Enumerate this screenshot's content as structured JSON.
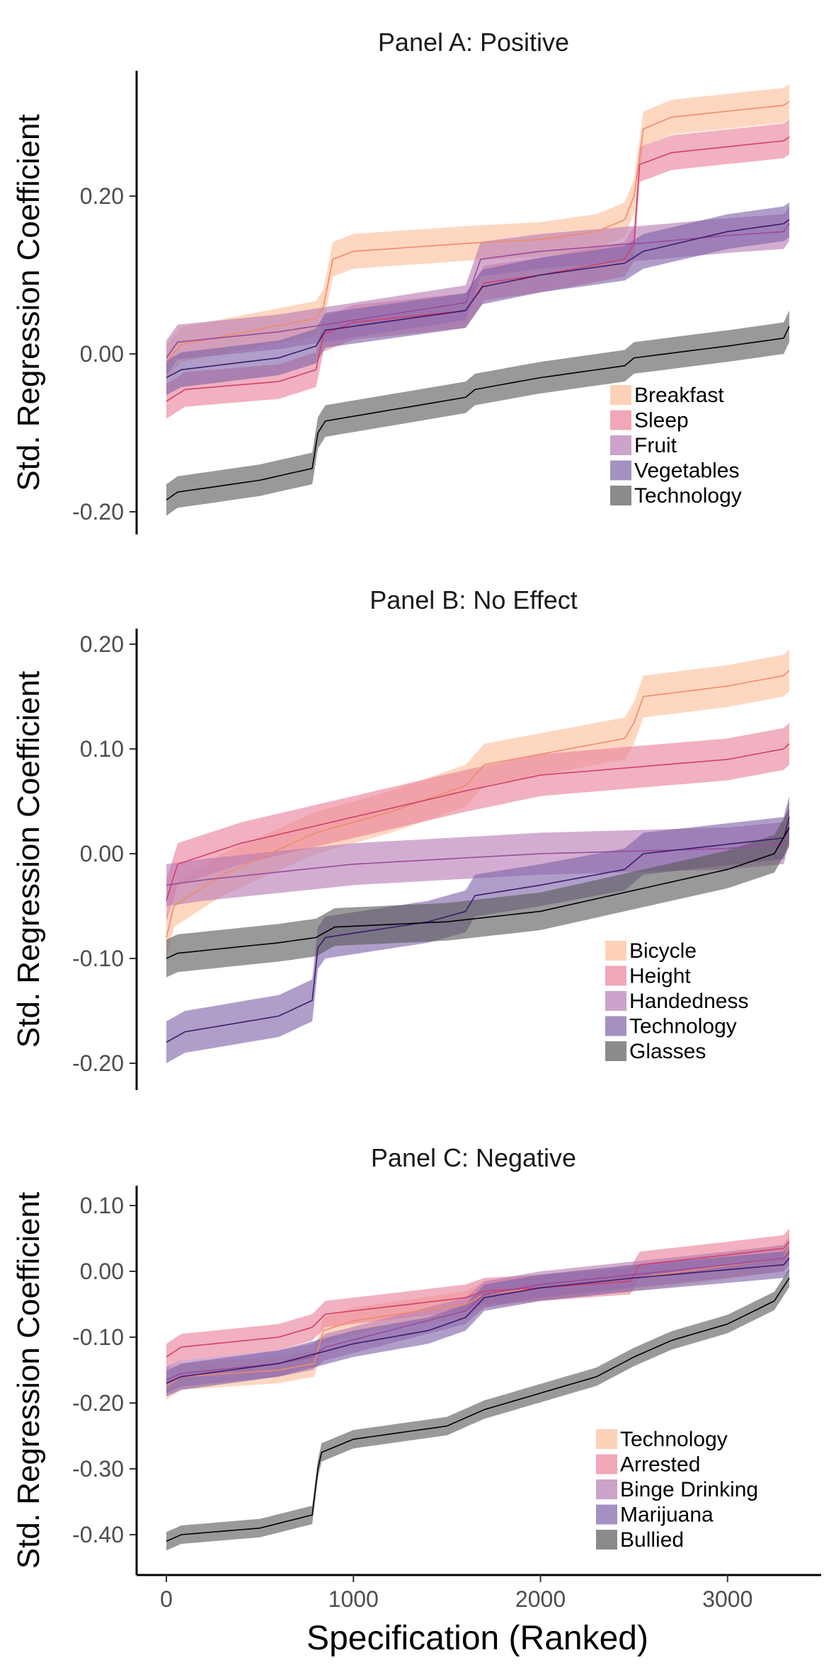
{
  "chart_data": {
    "type": "line",
    "x_label": "Specification (Ranked)",
    "xlim": [
      0,
      3330
    ],
    "x_ticks": [
      0,
      1000,
      2000,
      3000
    ],
    "x_tick_labels": [
      "0",
      "1000",
      "2000",
      "3000"
    ],
    "colors": {
      "c1": "#fdbe9b",
      "c2": "#e9819a",
      "c3": "#b87ab5",
      "c4": "#7e62a8",
      "c5": "#5a5a5a",
      "line1": "#f08a6a",
      "line2": "#d43f6a",
      "line3": "#9b4a9c",
      "line4": "#3d1a6e",
      "line5": "#000000"
    },
    "panels": [
      {
        "title": "Panel A: Positive",
        "y_label": "Std. Regression Coefficient",
        "ylim": [
          -0.225,
          0.36
        ],
        "y_ticks": [
          0.2,
          0.0,
          -0.2
        ],
        "y_tick_labels": [
          "0.20",
          "0.00",
          "-0.20"
        ],
        "legend_position": "bottom-right",
        "series": [
          {
            "name": "Breakfast",
            "band": 0.022,
            "points": [
              [
                0,
                -0.01
              ],
              [
                80,
                0.012
              ],
              [
                800,
                0.045
              ],
              [
                840,
                0.06
              ],
              [
                890,
                0.12
              ],
              [
                1000,
                0.13
              ],
              [
                1600,
                0.14
              ],
              [
                2000,
                0.145
              ],
              [
                2300,
                0.155
              ],
              [
                2450,
                0.17
              ],
              [
                2500,
                0.2
              ],
              [
                2550,
                0.285
              ],
              [
                2700,
                0.3
              ],
              [
                3300,
                0.315
              ],
              [
                3330,
                0.32
              ]
            ]
          },
          {
            "name": "Sleep",
            "band": 0.022,
            "points": [
              [
                0,
                -0.06
              ],
              [
                100,
                -0.045
              ],
              [
                600,
                -0.035
              ],
              [
                800,
                -0.02
              ],
              [
                840,
                0.025
              ],
              [
                1000,
                0.04
              ],
              [
                1600,
                0.055
              ],
              [
                1700,
                0.09
              ],
              [
                2000,
                0.1
              ],
              [
                2450,
                0.12
              ],
              [
                2500,
                0.14
              ],
              [
                2530,
                0.24
              ],
              [
                2700,
                0.255
              ],
              [
                3300,
                0.27
              ],
              [
                3330,
                0.275
              ]
            ]
          },
          {
            "name": "Fruit",
            "band": 0.022,
            "points": [
              [
                0,
                -0.005
              ],
              [
                60,
                0.015
              ],
              [
                600,
                0.028
              ],
              [
                1600,
                0.065
              ],
              [
                1680,
                0.12
              ],
              [
                2000,
                0.13
              ],
              [
                2500,
                0.14
              ],
              [
                2530,
                0.14
              ],
              [
                3000,
                0.15
              ],
              [
                3300,
                0.155
              ],
              [
                3330,
                0.165
              ]
            ]
          },
          {
            "name": "Vegetables",
            "band": 0.022,
            "points": [
              [
                0,
                -0.03
              ],
              [
                80,
                -0.02
              ],
              [
                600,
                -0.005
              ],
              [
                800,
                0.01
              ],
              [
                850,
                0.03
              ],
              [
                1600,
                0.055
              ],
              [
                1690,
                0.085
              ],
              [
                2000,
                0.1
              ],
              [
                2450,
                0.115
              ],
              [
                2550,
                0.13
              ],
              [
                3000,
                0.155
              ],
              [
                3300,
                0.165
              ],
              [
                3330,
                0.17
              ]
            ]
          },
          {
            "name": "Technology",
            "band": 0.02,
            "points": [
              [
                0,
                -0.185
              ],
              [
                60,
                -0.175
              ],
              [
                500,
                -0.16
              ],
              [
                780,
                -0.145
              ],
              [
                810,
                -0.1
              ],
              [
                850,
                -0.085
              ],
              [
                1600,
                -0.055
              ],
              [
                1650,
                -0.045
              ],
              [
                2000,
                -0.03
              ],
              [
                2450,
                -0.015
              ],
              [
                2500,
                -0.005
              ],
              [
                3000,
                0.01
              ],
              [
                3300,
                0.02
              ],
              [
                3330,
                0.035
              ]
            ]
          }
        ]
      },
      {
        "title": "Panel B: No Effect",
        "y_label": "Std. Regression Coefficient",
        "ylim": [
          -0.22,
          0.21
        ],
        "y_ticks": [
          0.2,
          0.1,
          0.0,
          -0.1,
          -0.2
        ],
        "y_tick_labels": [
          "0.20",
          "0.10",
          "0.00",
          "-0.10",
          "-0.20"
        ],
        "legend_position": "bottom-right",
        "series": [
          {
            "name": "Bicycle",
            "band": 0.02,
            "points": [
              [
                0,
                -0.08
              ],
              [
                40,
                -0.05
              ],
              [
                300,
                -0.02
              ],
              [
                800,
                0.02
              ],
              [
                1200,
                0.04
              ],
              [
                1600,
                0.065
              ],
              [
                1700,
                0.085
              ],
              [
                2000,
                0.095
              ],
              [
                2450,
                0.11
              ],
              [
                2500,
                0.125
              ],
              [
                2550,
                0.15
              ],
              [
                3000,
                0.16
              ],
              [
                3300,
                0.17
              ],
              [
                3330,
                0.175
              ]
            ]
          },
          {
            "name": "Height",
            "band": 0.02,
            "points": [
              [
                0,
                -0.045
              ],
              [
                60,
                -0.01
              ],
              [
                400,
                0.01
              ],
              [
                1000,
                0.035
              ],
              [
                1600,
                0.06
              ],
              [
                2000,
                0.075
              ],
              [
                3000,
                0.09
              ],
              [
                3300,
                0.1
              ],
              [
                3330,
                0.105
              ]
            ]
          },
          {
            "name": "Handedness",
            "band": 0.02,
            "points": [
              [
                0,
                -0.03
              ],
              [
                200,
                -0.025
              ],
              [
                1000,
                -0.01
              ],
              [
                2000,
                0.0
              ],
              [
                3000,
                0.005
              ],
              [
                3300,
                0.01
              ],
              [
                3330,
                0.03
              ]
            ]
          },
          {
            "name": "Technology",
            "band": 0.02,
            "points": [
              [
                0,
                -0.18
              ],
              [
                100,
                -0.17
              ],
              [
                600,
                -0.155
              ],
              [
                780,
                -0.14
              ],
              [
                810,
                -0.09
              ],
              [
                850,
                -0.08
              ],
              [
                1400,
                -0.065
              ],
              [
                1600,
                -0.055
              ],
              [
                1650,
                -0.04
              ],
              [
                2000,
                -0.03
              ],
              [
                2450,
                -0.015
              ],
              [
                2550,
                0.0
              ],
              [
                3300,
                0.015
              ],
              [
                3330,
                0.035
              ]
            ]
          },
          {
            "name": "Glasses",
            "band": 0.018,
            "points": [
              [
                0,
                -0.1
              ],
              [
                60,
                -0.095
              ],
              [
                600,
                -0.085
              ],
              [
                800,
                -0.08
              ],
              [
                900,
                -0.07
              ],
              [
                1500,
                -0.065
              ],
              [
                2000,
                -0.055
              ],
              [
                2500,
                -0.035
              ],
              [
                3000,
                -0.015
              ],
              [
                3250,
                0.0
              ],
              [
                3330,
                0.025
              ]
            ]
          }
        ]
      },
      {
        "title": "Panel C: Negative",
        "y_label": "Std. Regression Coefficient",
        "ylim": [
          -0.445,
          0.13
        ],
        "y_ticks": [
          0.1,
          0.0,
          -0.1,
          -0.2,
          -0.3,
          -0.4
        ],
        "y_tick_labels": [
          "0.10",
          "0.00",
          "-0.10",
          "-0.20",
          "-0.30",
          "-0.40"
        ],
        "legend_position": "bottom-right",
        "series": [
          {
            "name": "Technology",
            "band": 0.02,
            "points": [
              [
                0,
                -0.175
              ],
              [
                80,
                -0.16
              ],
              [
                600,
                -0.15
              ],
              [
                790,
                -0.14
              ],
              [
                840,
                -0.09
              ],
              [
                1000,
                -0.075
              ],
              [
                1600,
                -0.05
              ],
              [
                1700,
                -0.035
              ],
              [
                2000,
                -0.025
              ],
              [
                2500,
                -0.01
              ],
              [
                3300,
                0.02
              ],
              [
                3330,
                0.04
              ]
            ]
          },
          {
            "name": "Arrested",
            "band": 0.02,
            "points": [
              [
                0,
                -0.13
              ],
              [
                80,
                -0.115
              ],
              [
                600,
                -0.1
              ],
              [
                780,
                -0.085
              ],
              [
                850,
                -0.065
              ],
              [
                1600,
                -0.04
              ],
              [
                1700,
                -0.03
              ],
              [
                2000,
                -0.025
              ],
              [
                2480,
                -0.015
              ],
              [
                2530,
                0.01
              ],
              [
                3000,
                0.025
              ],
              [
                3300,
                0.035
              ],
              [
                3330,
                0.045
              ]
            ]
          },
          {
            "name": "Binge Drinking",
            "band": 0.02,
            "points": [
              [
                0,
                -0.165
              ],
              [
                80,
                -0.155
              ],
              [
                600,
                -0.14
              ],
              [
                780,
                -0.13
              ],
              [
                850,
                -0.115
              ],
              [
                1600,
                -0.06
              ],
              [
                1700,
                -0.035
              ],
              [
                2000,
                -0.02
              ],
              [
                2500,
                -0.005
              ],
              [
                3000,
                0.01
              ],
              [
                3300,
                0.02
              ],
              [
                3330,
                0.03
              ]
            ]
          },
          {
            "name": "Marijuana",
            "band": 0.02,
            "points": [
              [
                0,
                -0.17
              ],
              [
                80,
                -0.16
              ],
              [
                600,
                -0.14
              ],
              [
                800,
                -0.125
              ],
              [
                1000,
                -0.11
              ],
              [
                1400,
                -0.09
              ],
              [
                1600,
                -0.07
              ],
              [
                1700,
                -0.04
              ],
              [
                2000,
                -0.025
              ],
              [
                2500,
                -0.01
              ],
              [
                3300,
                0.01
              ],
              [
                3330,
                0.02
              ]
            ]
          },
          {
            "name": "Bullied",
            "band": 0.014,
            "points": [
              [
                0,
                -0.41
              ],
              [
                80,
                -0.4
              ],
              [
                500,
                -0.39
              ],
              [
                780,
                -0.37
              ],
              [
                810,
                -0.3
              ],
              [
                830,
                -0.275
              ],
              [
                1000,
                -0.255
              ],
              [
                1500,
                -0.235
              ],
              [
                1700,
                -0.21
              ],
              [
                2000,
                -0.185
              ],
              [
                2300,
                -0.16
              ],
              [
                2500,
                -0.13
              ],
              [
                2700,
                -0.105
              ],
              [
                3000,
                -0.08
              ],
              [
                3250,
                -0.045
              ],
              [
                3330,
                -0.01
              ]
            ]
          }
        ]
      }
    ]
  }
}
